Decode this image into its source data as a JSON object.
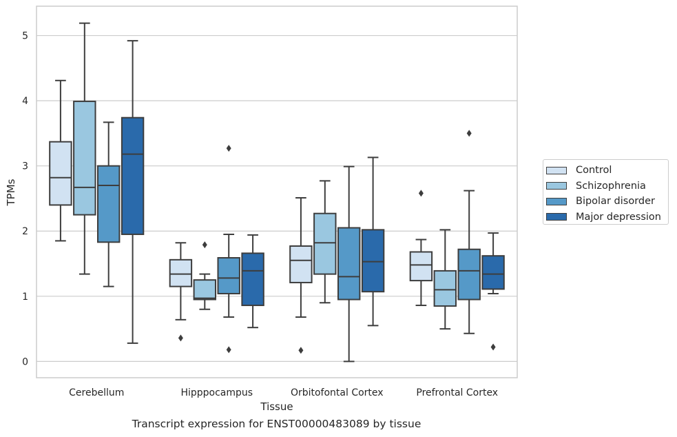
{
  "chart_data": {
    "type": "boxplot",
    "title": "",
    "xlabel": "Tissue",
    "ylabel": "TPMs",
    "caption": "Transcript expression for ENST00000483089 by tissue",
    "categories": [
      "Cerebellum",
      "Hipppocampus",
      "Orbitofontal Cortex",
      "Prefrontal Cortex"
    ],
    "ylim": [
      -0.25,
      5.45
    ],
    "yticks": [
      0,
      1,
      2,
      3,
      4,
      5
    ],
    "grid": "horizontal",
    "legend_position": "right",
    "series": [
      {
        "name": "Control",
        "color": "#d1e2f2",
        "boxes": [
          {
            "whislo": 1.85,
            "q1": 2.4,
            "med": 2.82,
            "q3": 3.37,
            "whishi": 4.31,
            "fliers": []
          },
          {
            "whislo": 0.64,
            "q1": 1.15,
            "med": 1.34,
            "q3": 1.56,
            "whishi": 1.82,
            "fliers": [
              0.36
            ]
          },
          {
            "whislo": 0.68,
            "q1": 1.21,
            "med": 1.55,
            "q3": 1.77,
            "whishi": 2.51,
            "fliers": [
              0.17
            ]
          },
          {
            "whislo": 0.86,
            "q1": 1.24,
            "med": 1.48,
            "q3": 1.68,
            "whishi": 1.87,
            "fliers": [
              2.58
            ]
          }
        ]
      },
      {
        "name": "Schizophrenia",
        "color": "#9ac7e0",
        "boxes": [
          {
            "whislo": 1.34,
            "q1": 2.25,
            "med": 2.67,
            "q3": 3.99,
            "whishi": 5.19,
            "fliers": []
          },
          {
            "whislo": 0.8,
            "q1": 0.95,
            "med": 0.97,
            "q3": 1.25,
            "whishi": 1.34,
            "fliers": [
              1.79
            ]
          },
          {
            "whislo": 0.9,
            "q1": 1.34,
            "med": 1.82,
            "q3": 2.27,
            "whishi": 2.77,
            "fliers": []
          },
          {
            "whislo": 0.5,
            "q1": 0.85,
            "med": 1.1,
            "q3": 1.39,
            "whishi": 2.02,
            "fliers": []
          }
        ]
      },
      {
        "name": "Bipolar disorder",
        "color": "#5599c8",
        "boxes": [
          {
            "whislo": 1.15,
            "q1": 1.83,
            "med": 2.7,
            "q3": 3.0,
            "whishi": 3.67,
            "fliers": []
          },
          {
            "whislo": 0.68,
            "q1": 1.04,
            "med": 1.28,
            "q3": 1.59,
            "whishi": 1.95,
            "fliers": [
              3.27,
              0.18
            ]
          },
          {
            "whislo": 0.0,
            "q1": 0.95,
            "med": 1.3,
            "q3": 2.05,
            "whishi": 2.99,
            "fliers": []
          },
          {
            "whislo": 0.43,
            "q1": 0.95,
            "med": 1.39,
            "q3": 1.72,
            "whishi": 2.62,
            "fliers": [
              3.5
            ]
          }
        ]
      },
      {
        "name": "Major depression",
        "color": "#2a6aab",
        "boxes": [
          {
            "whislo": 0.28,
            "q1": 1.95,
            "med": 3.18,
            "q3": 3.74,
            "whishi": 4.92,
            "fliers": []
          },
          {
            "whislo": 0.52,
            "q1": 0.86,
            "med": 1.39,
            "q3": 1.66,
            "whishi": 1.94,
            "fliers": []
          },
          {
            "whislo": 0.55,
            "q1": 1.07,
            "med": 1.53,
            "q3": 2.02,
            "whishi": 3.13,
            "fliers": []
          },
          {
            "whislo": 1.04,
            "q1": 1.11,
            "med": 1.34,
            "q3": 1.62,
            "whishi": 1.97,
            "fliers": [
              0.22
            ]
          }
        ]
      }
    ]
  }
}
